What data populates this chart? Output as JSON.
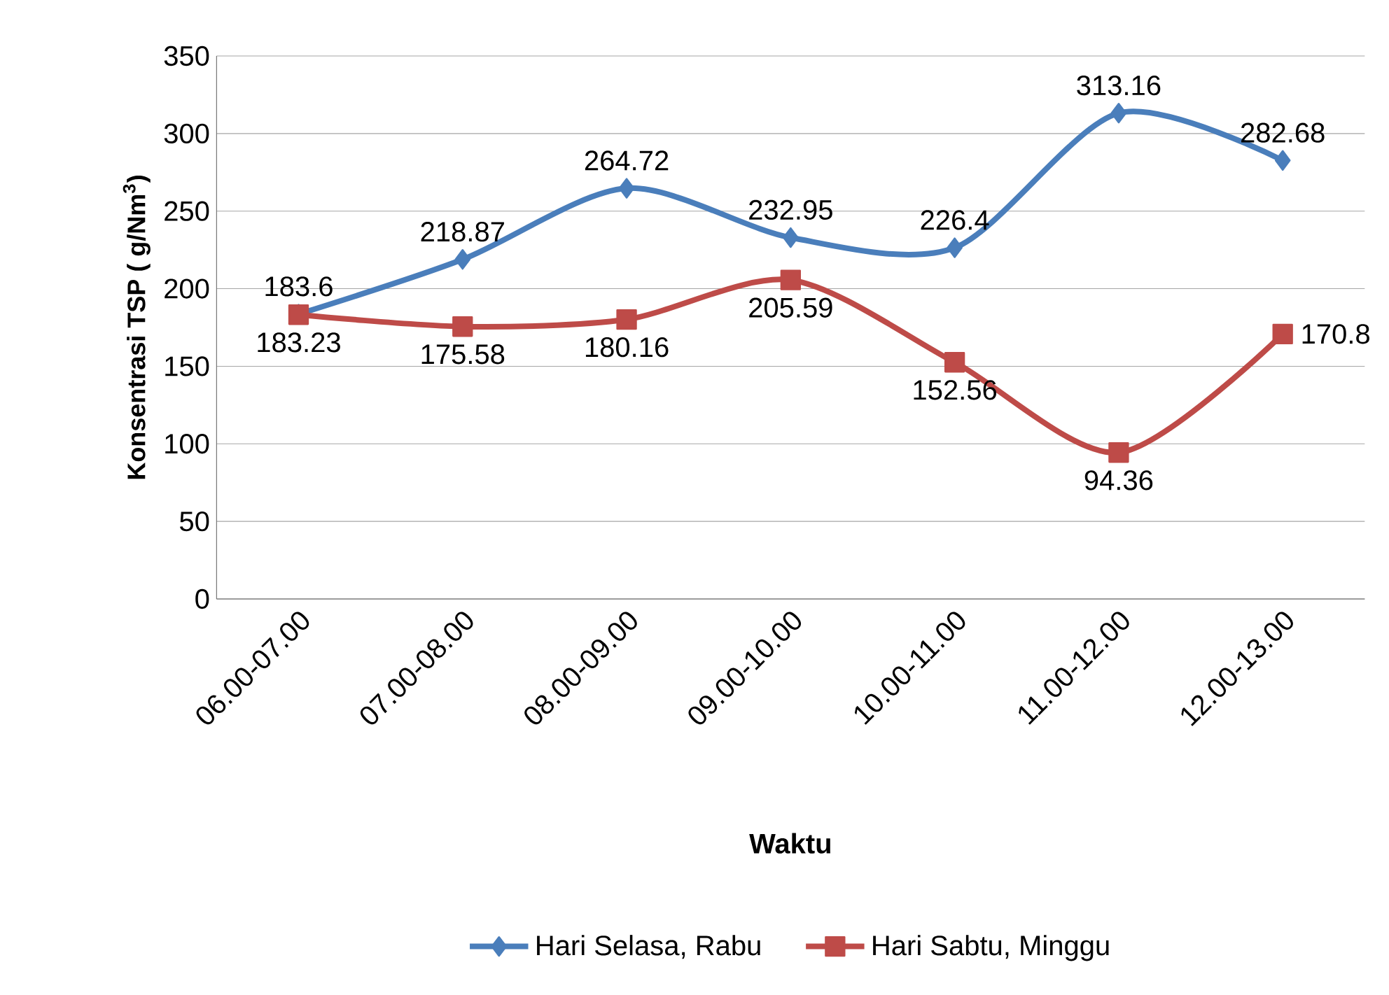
{
  "chart_data": {
    "type": "line",
    "xlabel": "Waktu",
    "ylabel": "Konsentrasi TSP (  g/Nm$^{3}$)",
    "categories": [
      "06.00-07.00",
      "07.00-08.00",
      "08.00-09.00",
      "09.00-10.00",
      "10.00-11.00",
      "11.00-12.00",
      "12.00-13.00"
    ],
    "series": [
      {
        "name": "Hari Selasa, Rabu",
        "color": "#4a7ebb",
        "marker": "diamond",
        "values": [
          183.6,
          218.87,
          264.72,
          232.95,
          226.4,
          313.16,
          282.68
        ]
      },
      {
        "name": "Hari Sabtu, Minggu",
        "color": "#be4b48",
        "marker": "square",
        "values": [
          183.23,
          175.58,
          180.16,
          205.59,
          152.56,
          94.36,
          170.8
        ]
      }
    ],
    "ylim": [
      0,
      350
    ],
    "yticks": [
      0,
      50,
      100,
      150,
      200,
      250,
      300,
      350
    ],
    "grid": "y",
    "legend": "bottom",
    "data_labels": true
  }
}
